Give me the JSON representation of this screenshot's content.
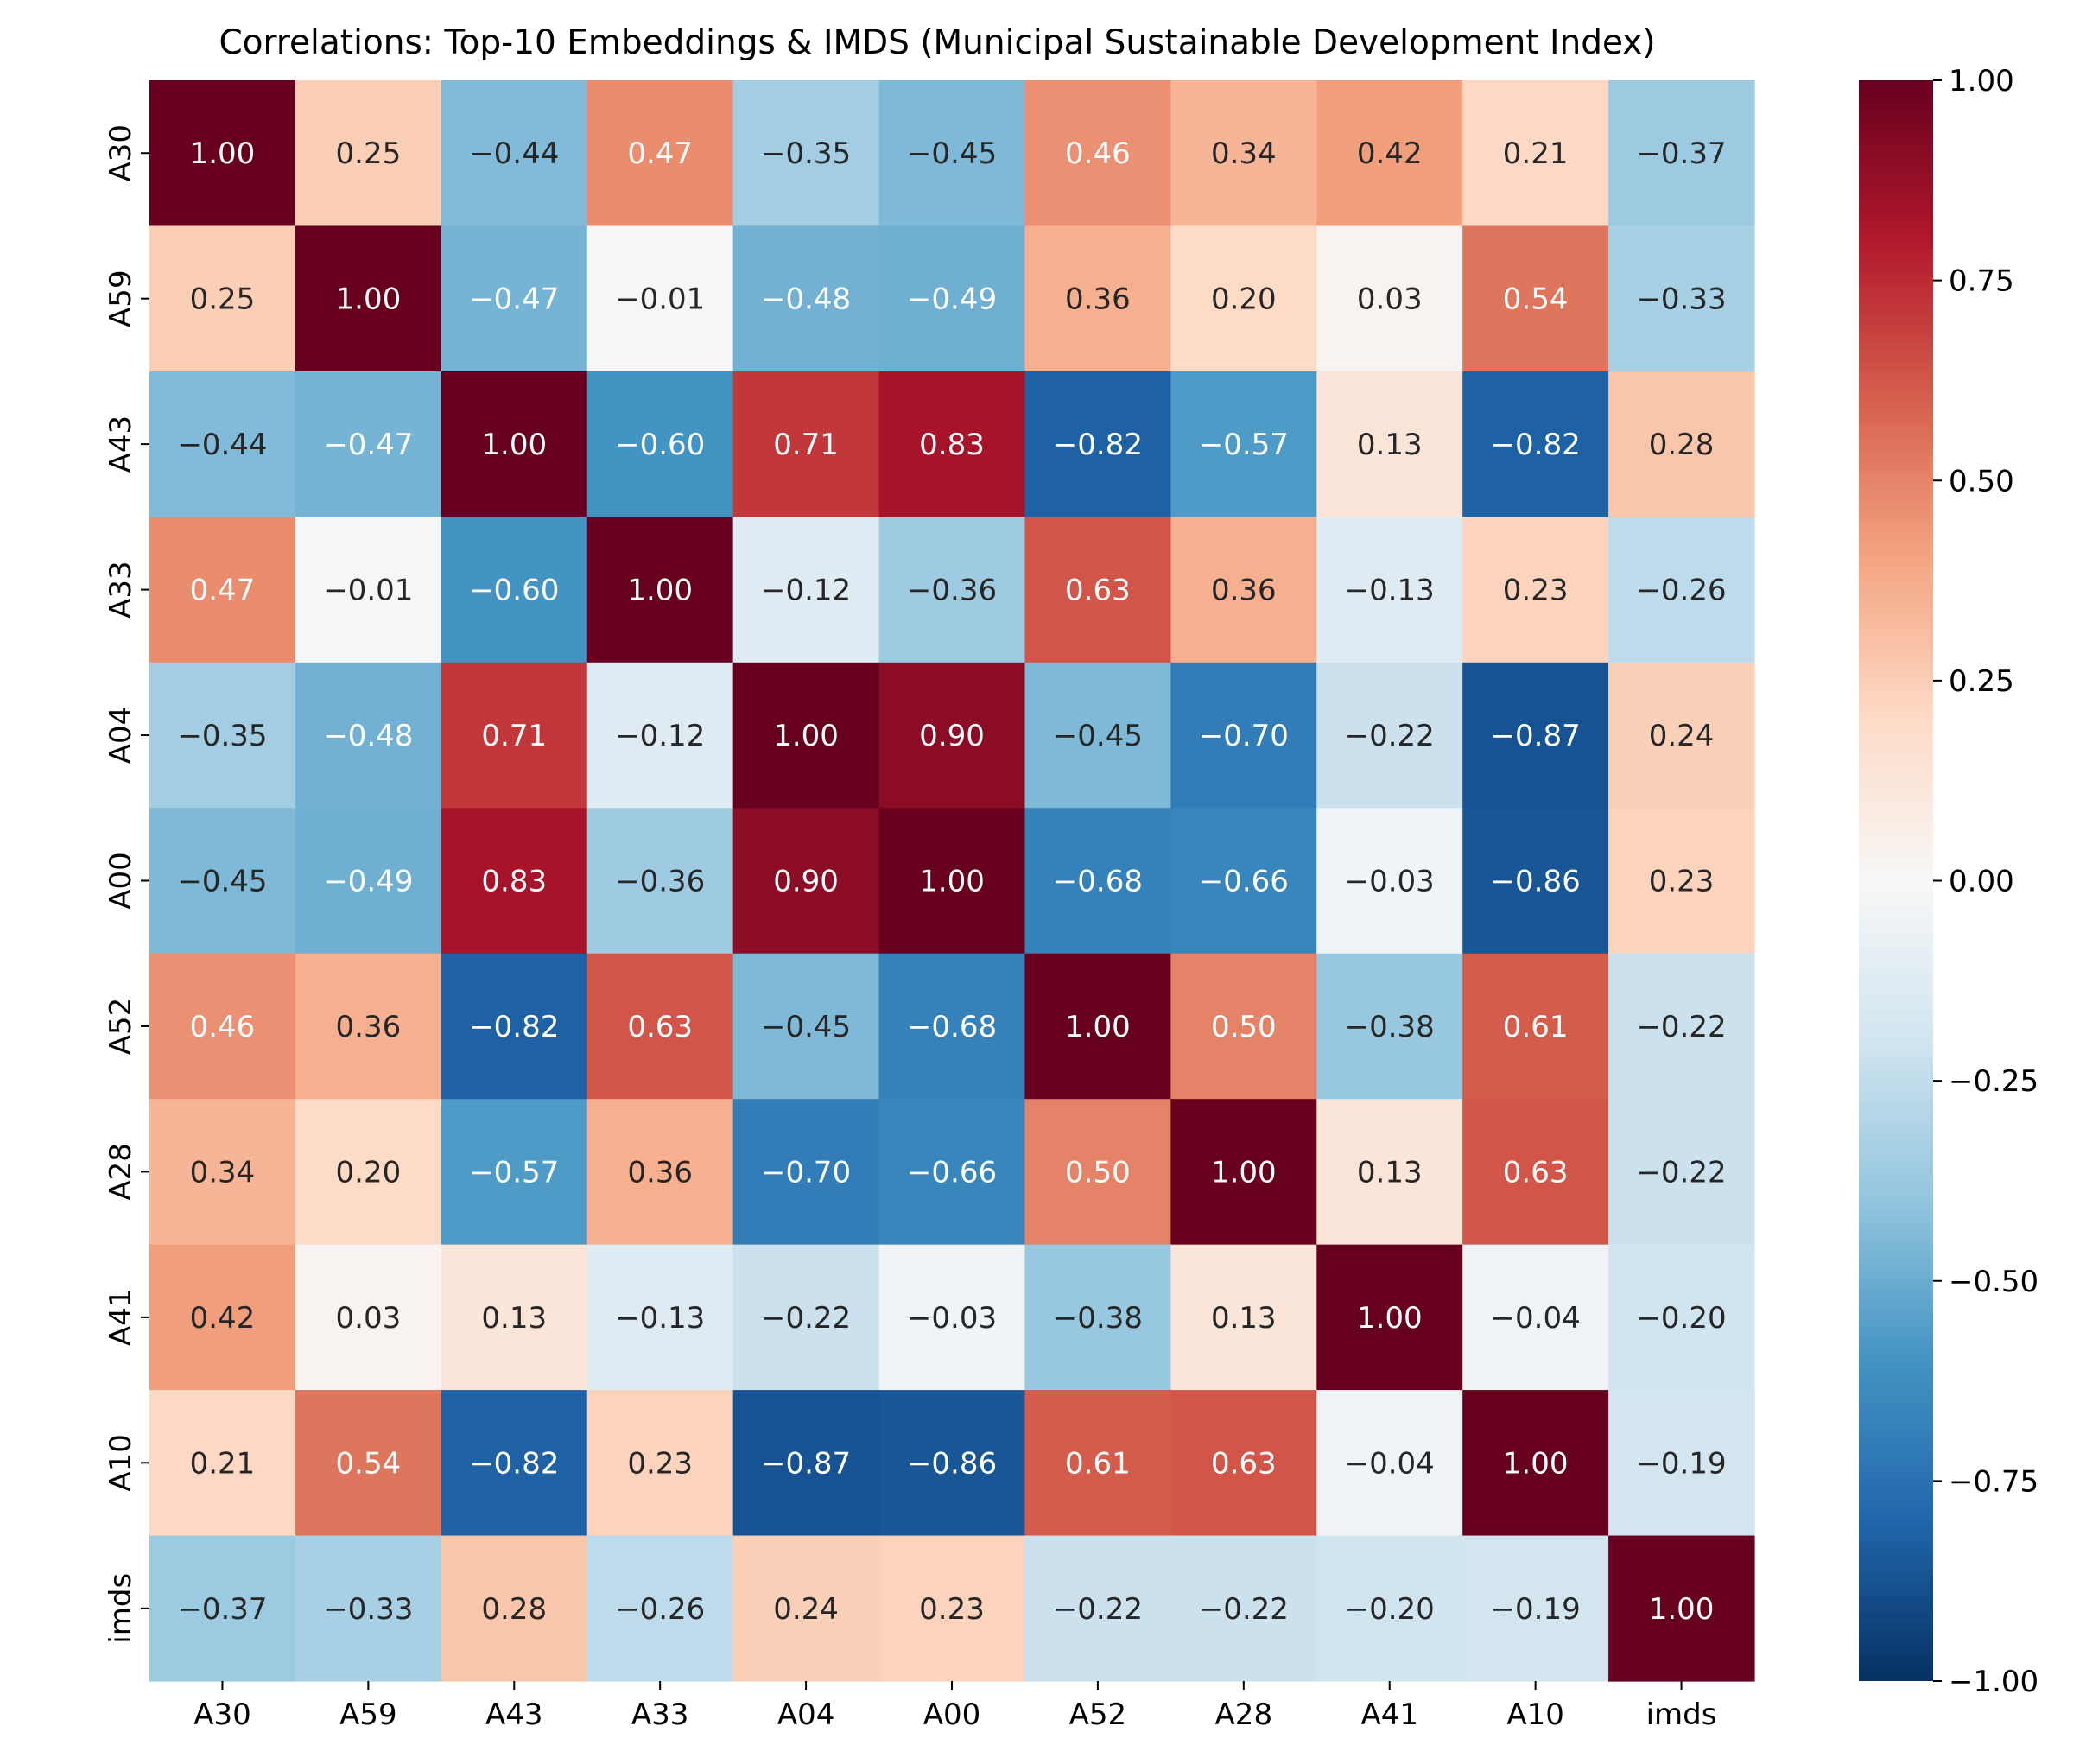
{
  "chart_data": {
    "type": "heatmap",
    "title": "Correlations: Top-10 Embeddings & IMDS (Municipal Sustainable Development Index)",
    "x_labels": [
      "A30",
      "A59",
      "A43",
      "A33",
      "A04",
      "A00",
      "A52",
      "A28",
      "A41",
      "A10",
      "imds"
    ],
    "y_labels": [
      "A30",
      "A59",
      "A43",
      "A33",
      "A04",
      "A00",
      "A52",
      "A28",
      "A41",
      "A10",
      "imds"
    ],
    "values": [
      [
        1.0,
        0.25,
        -0.44,
        0.47,
        -0.35,
        -0.45,
        0.46,
        0.34,
        0.42,
        0.21,
        -0.37
      ],
      [
        0.25,
        1.0,
        -0.47,
        -0.01,
        -0.48,
        -0.49,
        0.36,
        0.2,
        0.03,
        0.54,
        -0.33
      ],
      [
        -0.44,
        -0.47,
        1.0,
        -0.6,
        0.71,
        0.83,
        -0.82,
        -0.57,
        0.13,
        -0.82,
        0.28
      ],
      [
        0.47,
        -0.01,
        -0.6,
        1.0,
        -0.12,
        -0.36,
        0.63,
        0.36,
        -0.13,
        0.23,
        -0.26
      ],
      [
        -0.35,
        -0.48,
        0.71,
        -0.12,
        1.0,
        0.9,
        -0.45,
        -0.7,
        -0.22,
        -0.87,
        0.24
      ],
      [
        -0.45,
        -0.49,
        0.83,
        -0.36,
        0.9,
        1.0,
        -0.68,
        -0.66,
        -0.03,
        -0.86,
        0.23
      ],
      [
        0.46,
        0.36,
        -0.82,
        0.63,
        -0.45,
        -0.68,
        1.0,
        0.5,
        -0.38,
        0.61,
        -0.22
      ],
      [
        0.34,
        0.2,
        -0.57,
        0.36,
        -0.7,
        -0.66,
        0.5,
        1.0,
        0.13,
        0.63,
        -0.22
      ],
      [
        0.42,
        0.03,
        0.13,
        -0.13,
        -0.22,
        -0.03,
        -0.38,
        0.13,
        1.0,
        -0.04,
        -0.2
      ],
      [
        0.21,
        0.54,
        -0.82,
        0.23,
        -0.87,
        -0.86,
        0.61,
        0.63,
        -0.04,
        1.0,
        -0.19
      ],
      [
        -0.37,
        -0.33,
        0.28,
        -0.26,
        0.24,
        0.23,
        -0.22,
        -0.22,
        -0.2,
        -0.19,
        1.0
      ]
    ],
    "colormap": "RdBu_r",
    "vmin": -1.0,
    "vmax": 1.0,
    "colorbar_ticks": [
      "1.00",
      "0.75",
      "0.50",
      "0.25",
      "0.00",
      "−0.25",
      "−0.50",
      "−0.75",
      "−1.00"
    ],
    "colorbar_tick_values": [
      1.0,
      0.75,
      0.5,
      0.25,
      0,
      -0.25,
      -0.5,
      -0.75,
      -1.0
    ],
    "annotations": true,
    "grid": false
  }
}
